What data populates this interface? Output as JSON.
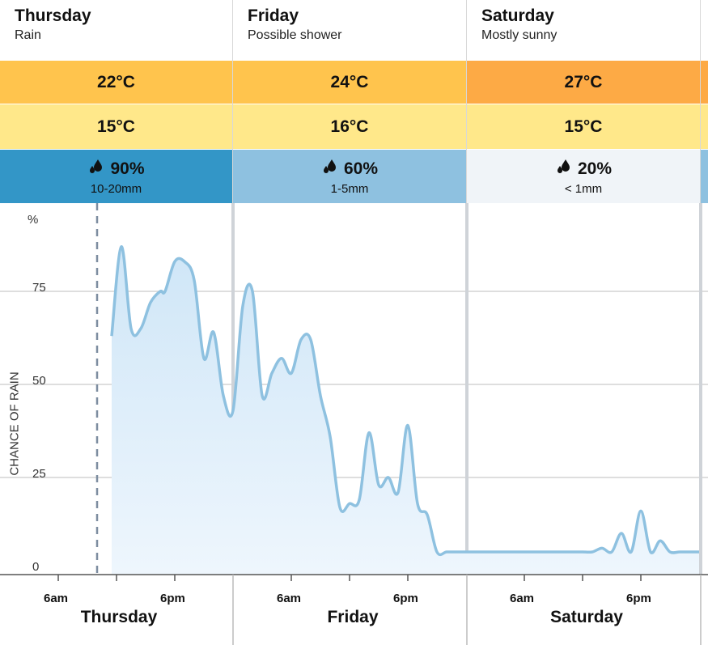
{
  "days": [
    {
      "name": "Thursday",
      "condition": "Rain",
      "max": "22°C",
      "min": "15°C",
      "rain_chance": "90%",
      "rain_amount": "10-20mm",
      "max_color": "#ffc44d",
      "min_color": "#ffe88a",
      "rain_color": "#3396c7",
      "rain_text_color": "#111"
    },
    {
      "name": "Friday",
      "condition": "Possible shower",
      "max": "24°C",
      "min": "16°C",
      "rain_chance": "60%",
      "rain_amount": "1-5mm",
      "max_color": "#ffc44d",
      "min_color": "#ffe88a",
      "rain_color": "#8ec1e0",
      "rain_text_color": "#111"
    },
    {
      "name": "Saturday",
      "condition": "Mostly sunny",
      "max": "27°C",
      "min": "15°C",
      "rain_chance": "20%",
      "rain_amount": "< 1mm",
      "max_color": "#fdaa45",
      "min_color": "#ffe88a",
      "rain_color": "#f0f4f8",
      "rain_text_color": "#111"
    }
  ],
  "chart_data": {
    "type": "area",
    "ylabel": "CHANCE OF RAIN",
    "yunit": "%",
    "ylim": [
      0,
      100
    ],
    "yticks": [
      "0",
      "25",
      "50",
      "75"
    ],
    "xticks": [
      "6am",
      "6pm",
      "6am",
      "6pm",
      "6am",
      "6pm"
    ],
    "xdays": [
      "Thursday",
      "Friday",
      "Saturday"
    ],
    "now_marker_hours": 10,
    "x_hours": [
      11.5,
      12.5,
      13.5,
      14.5,
      15.5,
      16.5,
      17,
      18,
      19,
      20,
      21,
      22,
      23,
      24,
      25,
      26,
      27,
      28,
      29,
      30,
      31,
      32,
      33,
      34,
      35,
      36,
      37,
      38,
      39,
      40,
      41,
      42,
      43,
      44,
      45,
      46,
      47,
      48,
      49,
      50,
      51,
      52,
      53,
      54,
      55,
      56,
      57,
      58,
      59,
      60,
      61,
      62,
      63,
      64,
      65,
      66,
      67,
      68,
      69,
      70,
      71,
      72
    ],
    "values": [
      63,
      87,
      65,
      65,
      72,
      75,
      75,
      83,
      83,
      78,
      57,
      64,
      47,
      43,
      71,
      75,
      47,
      53,
      57,
      53,
      62,
      62,
      47,
      36,
      17,
      18,
      19,
      37,
      23,
      25,
      21,
      39,
      18,
      15,
      5,
      5,
      5,
      5,
      5,
      5,
      5,
      5,
      5,
      5,
      5,
      5,
      5,
      5,
      5,
      5,
      5,
      6,
      5,
      10,
      5,
      16,
      5,
      8,
      5,
      5,
      5,
      5
    ]
  }
}
